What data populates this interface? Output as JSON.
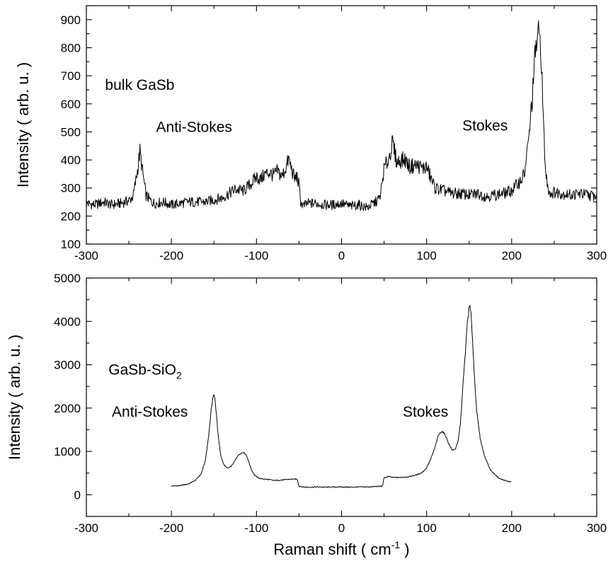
{
  "chart_data": [
    {
      "type": "line",
      "xlabel": "",
      "ylabel": "Intensity ( arb. u. )",
      "xlim": [
        -300,
        300
      ],
      "ylim": [
        100,
        950
      ],
      "xticks": [
        -300,
        -200,
        -100,
        0,
        100,
        200,
        300
      ],
      "yticks": [
        100,
        200,
        300,
        400,
        500,
        600,
        700,
        800,
        900
      ],
      "annotations": [
        {
          "text": "bulk GaSb",
          "x": -278,
          "y": 650
        },
        {
          "text": "Anti-Stokes",
          "x": -218,
          "y": 500
        },
        {
          "text": "Stokes",
          "x": 142,
          "y": 505
        }
      ],
      "series": [
        {
          "x": [
            -300,
            -290,
            -280,
            -270,
            -260,
            -250,
            -245,
            -240,
            -237,
            -234,
            -230,
            -225,
            -220,
            -210,
            -200,
            -180,
            -160,
            -140,
            -125,
            -115,
            -105,
            -100,
            -95,
            -90,
            -85,
            -80,
            -75,
            -70,
            -65,
            -62,
            -60,
            -57,
            -55,
            -53,
            -50,
            -48,
            -45,
            -40,
            -30,
            -20,
            -10,
            0,
            10,
            20,
            30,
            40,
            45,
            48,
            50,
            55,
            60,
            63,
            65,
            70,
            75,
            80,
            85,
            90,
            95,
            100,
            105,
            110,
            120,
            130,
            140,
            150,
            160,
            170,
            180,
            190,
            200,
            210,
            215,
            220,
            225,
            228,
            230,
            232,
            234,
            235,
            236,
            238,
            240,
            243,
            246,
            250,
            260,
            270,
            280,
            290,
            300
          ],
          "y": [
            245,
            240,
            250,
            240,
            245,
            255,
            270,
            360,
            430,
            360,
            275,
            255,
            245,
            250,
            240,
            250,
            250,
            265,
            295,
            290,
            320,
            340,
            330,
            350,
            355,
            345,
            360,
            340,
            375,
            405,
            380,
            350,
            330,
            345,
            310,
            250,
            235,
            245,
            245,
            240,
            240,
            245,
            235,
            240,
            230,
            250,
            265,
            320,
            370,
            400,
            460,
            420,
            390,
            400,
            400,
            375,
            380,
            380,
            370,
            375,
            335,
            300,
            290,
            280,
            280,
            275,
            280,
            270,
            275,
            280,
            290,
            325,
            350,
            470,
            650,
            790,
            830,
            840,
            820,
            760,
            650,
            480,
            350,
            300,
            280,
            285,
            280,
            275,
            280,
            275,
            270
          ]
        }
      ]
    },
    {
      "type": "line",
      "xlabel": "Raman shift ( cm⁻¹ )",
      "ylabel": "Intensity ( arb. u. )",
      "xlim": [
        -300,
        300
      ],
      "ylim": [
        -500,
        5000
      ],
      "xticks": [
        -300,
        -200,
        -100,
        0,
        100,
        200,
        300
      ],
      "yticks": [
        0,
        1000,
        2000,
        3000,
        4000,
        5000
      ],
      "annotations": [
        {
          "text": "GaSb-SiO",
          "sub": "2",
          "x": -274,
          "y": 2770
        },
        {
          "text": "Anti-Stokes",
          "x": -270,
          "y": 1800
        },
        {
          "text": "Stokes",
          "x": 72,
          "y": 1800
        }
      ],
      "series": [
        {
          "x": [
            -200,
            -190,
            -180,
            -172,
            -165,
            -160,
            -156,
            -153,
            -151,
            -150,
            -149,
            -147,
            -145,
            -142,
            -138,
            -134,
            -130,
            -126,
            -122,
            -118,
            -115,
            -112,
            -109,
            -106,
            -102,
            -98,
            -94,
            -90,
            -85,
            -80,
            -70,
            -60,
            -52,
            -50,
            -45,
            -40,
            -30,
            -20,
            -10,
            0,
            10,
            20,
            30,
            40,
            48,
            50,
            55,
            60,
            70,
            80,
            90,
            95,
            100,
            105,
            110,
            114,
            118,
            122,
            126,
            130,
            134,
            137,
            140,
            143,
            146,
            148,
            150,
            151,
            152,
            154,
            156,
            159,
            163,
            168,
            175,
            185,
            195,
            200
          ],
          "y": [
            200,
            210,
            250,
            330,
            480,
            800,
            1400,
            2000,
            2280,
            2300,
            2220,
            1850,
            1350,
            900,
            680,
            610,
            650,
            760,
            900,
            960,
            980,
            920,
            760,
            580,
            450,
            390,
            370,
            360,
            350,
            330,
            340,
            360,
            360,
            200,
            180,
            175,
            180,
            175,
            178,
            180,
            175,
            180,
            180,
            190,
            200,
            390,
            420,
            400,
            400,
            420,
            470,
            520,
            620,
            830,
            1100,
            1380,
            1470,
            1380,
            1180,
            1030,
            1060,
            1220,
            1700,
            2600,
            3400,
            4000,
            4300,
            4350,
            4200,
            3600,
            2800,
            1900,
            1300,
            900,
            570,
            380,
            310,
            300
          ]
        }
      ]
    }
  ]
}
